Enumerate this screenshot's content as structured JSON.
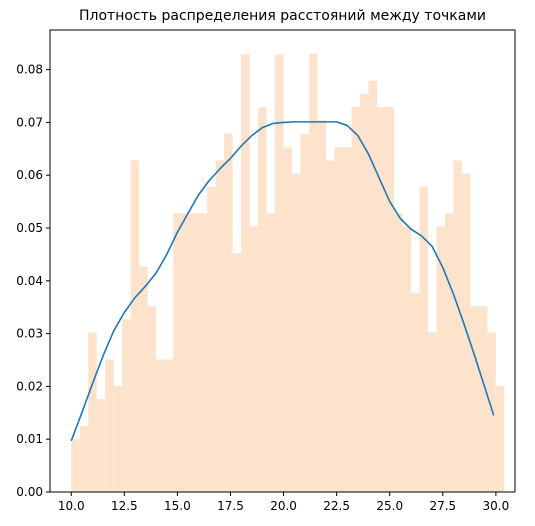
{
  "chart_data": {
    "type": "bar",
    "title": "Плотность распределения расстояний между точками",
    "xlabel": "",
    "ylabel": "",
    "xlim": [
      9.0,
      30.9
    ],
    "ylim": [
      0,
      0.0875
    ],
    "grid": false,
    "legend": "none",
    "xticks": [
      "10.0",
      "12.5",
      "15.0",
      "17.5",
      "20.0",
      "22.5",
      "25.0",
      "27.5",
      "30.0"
    ],
    "xtick_values": [
      10.0,
      12.5,
      15.0,
      17.5,
      20.0,
      22.5,
      25.0,
      27.5,
      30.0
    ],
    "yticks": [
      "0.00",
      "0.01",
      "0.02",
      "0.03",
      "0.04",
      "0.05",
      "0.06",
      "0.07",
      "0.08"
    ],
    "ytick_values": [
      0.0,
      0.01,
      0.02,
      0.03,
      0.04,
      0.05,
      0.06,
      0.07,
      0.08
    ],
    "histogram": {
      "bin_start": 10.0,
      "bin_width": 0.4,
      "color": "#fde3cc",
      "values": [
        0.01,
        0.0125,
        0.0302,
        0.0176,
        0.0251,
        0.0201,
        0.0327,
        0.0628,
        0.0427,
        0.0352,
        0.0251,
        0.0251,
        0.0528,
        0.0528,
        0.0528,
        0.0528,
        0.0578,
        0.0628,
        0.0679,
        0.0452,
        0.0829,
        0.0503,
        0.0729,
        0.0528,
        0.0829,
        0.0653,
        0.0603,
        0.0678,
        0.083,
        0.0704,
        0.0628,
        0.0653,
        0.0653,
        0.0729,
        0.0754,
        0.0779,
        0.0729,
        0.0729,
        0.0528,
        0.0503,
        0.0377,
        0.0578,
        0.0302,
        0.0503,
        0.0528,
        0.0628,
        0.0603,
        0.0352,
        0.0352,
        0.0302,
        0.0201
      ]
    },
    "series": [
      {
        "type": "line",
        "color": "#1f77b4",
        "x": [
          10.0,
          10.5,
          11.0,
          11.5,
          12.0,
          12.5,
          13.0,
          13.5,
          14.0,
          14.5,
          15.0,
          15.5,
          16.0,
          16.5,
          17.0,
          17.5,
          18.0,
          18.5,
          19.0,
          19.5,
          20.0,
          20.5,
          21.0,
          21.5,
          22.0,
          22.5,
          23.0,
          23.5,
          24.0,
          24.5,
          25.0,
          25.5,
          26.0,
          26.5,
          27.0,
          27.5,
          28.0,
          28.5,
          29.0,
          29.5,
          29.9
        ],
        "y": [
          0.0097,
          0.015,
          0.0205,
          0.0258,
          0.0305,
          0.034,
          0.0368,
          0.039,
          0.0415,
          0.045,
          0.0492,
          0.0528,
          0.0563,
          0.059,
          0.0612,
          0.0632,
          0.0655,
          0.0675,
          0.069,
          0.0698,
          0.07,
          0.0701,
          0.0701,
          0.0701,
          0.0701,
          0.0701,
          0.0694,
          0.0675,
          0.064,
          0.0595,
          0.055,
          0.0518,
          0.0498,
          0.0485,
          0.0465,
          0.0425,
          0.0375,
          0.0318,
          0.0258,
          0.0195,
          0.0145
        ]
      }
    ]
  }
}
